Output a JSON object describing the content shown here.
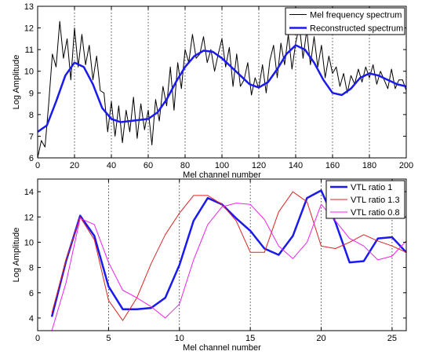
{
  "chart_data": [
    {
      "type": "line",
      "xlabel": "Mel channel number",
      "ylabel": "Log Amplitude",
      "xlim": [
        0,
        200
      ],
      "ylim": [
        6,
        13
      ],
      "xticks": [
        0,
        20,
        40,
        60,
        80,
        100,
        120,
        140,
        160,
        180,
        200
      ],
      "yticks": [
        6,
        7,
        8,
        9,
        10,
        11,
        12,
        13
      ],
      "vlines": [
        20,
        40,
        60,
        80,
        100,
        120,
        140,
        160,
        180,
        200
      ],
      "legend_position": "top-right",
      "grid": false,
      "series": [
        {
          "name": "Mel frequency spectrum",
          "color": "#000000",
          "width": 1,
          "x": [
            0,
            2,
            4,
            6,
            8,
            10,
            12,
            14,
            16,
            18,
            20,
            22,
            24,
            26,
            28,
            30,
            32,
            34,
            36,
            38,
            40,
            42,
            44,
            46,
            48,
            50,
            52,
            54,
            56,
            58,
            60,
            62,
            64,
            66,
            68,
            70,
            72,
            74,
            76,
            78,
            80,
            82,
            84,
            86,
            88,
            90,
            92,
            94,
            96,
            98,
            100,
            102,
            104,
            106,
            108,
            110,
            112,
            114,
            116,
            118,
            120,
            122,
            124,
            126,
            128,
            130,
            132,
            134,
            136,
            138,
            140,
            142,
            144,
            146,
            148,
            150,
            152,
            154,
            156,
            158,
            160,
            162,
            164,
            166,
            168,
            170,
            172,
            174,
            176,
            178,
            180,
            182,
            184,
            186,
            188,
            190,
            192,
            194,
            196,
            198,
            200
          ],
          "y": [
            6.0,
            6.8,
            6.5,
            8.5,
            10.8,
            10.2,
            12.3,
            10.6,
            11.5,
            9.6,
            12.0,
            10.2,
            11.7,
            10.3,
            11.2,
            9.6,
            10.7,
            9.1,
            9.0,
            7.2,
            8.6,
            7.0,
            8.4,
            6.7,
            8.2,
            7.2,
            8.8,
            6.9,
            8.5,
            7.3,
            8.2,
            6.6,
            8.7,
            7.7,
            9.3,
            8.4,
            10.2,
            8.2,
            10.4,
            9.2,
            11.0,
            10.4,
            11.7,
            10.6,
            10.8,
            11.6,
            10.4,
            11.0,
            10.0,
            10.8,
            11.5,
            10.2,
            11.1,
            9.3,
            10.8,
            9.3,
            9.6,
            10.4,
            8.9,
            9.7,
            9.2,
            10.3,
            9.0,
            10.5,
            11.2,
            9.7,
            11.3,
            10.3,
            11.7,
            10.1,
            11.3,
            12.1,
            10.6,
            11.9,
            10.3,
            11.6,
            10.2,
            11.2,
            9.7,
            10.7,
            9.9,
            10.2,
            9.3,
            9.9,
            9.0,
            9.8,
            9.4,
            10.1,
            9.5,
            10.2,
            9.7,
            10.3,
            9.4,
            10.0,
            9.6,
            9.2,
            10.1,
            9.2,
            9.6,
            9.6,
            9.1
          ]
        },
        {
          "name": "Reconstructed spectrum",
          "color": "#1a1aee",
          "width": 2.5,
          "x": [
            0,
            5,
            10,
            15,
            20,
            25,
            30,
            35,
            40,
            45,
            50,
            55,
            60,
            65,
            70,
            75,
            80,
            85,
            90,
            95,
            100,
            105,
            110,
            115,
            120,
            125,
            130,
            135,
            140,
            145,
            150,
            155,
            160,
            165,
            170,
            175,
            180,
            185,
            190,
            195,
            200
          ],
          "y": [
            7.2,
            7.5,
            8.6,
            9.8,
            10.4,
            10.2,
            9.4,
            8.3,
            7.8,
            7.65,
            7.7,
            7.75,
            7.8,
            8.1,
            8.7,
            9.5,
            10.2,
            10.7,
            10.95,
            10.9,
            10.6,
            10.2,
            9.8,
            9.4,
            9.25,
            9.5,
            10.1,
            10.8,
            11.2,
            11.0,
            10.4,
            9.6,
            9.0,
            8.9,
            9.2,
            9.7,
            9.9,
            9.8,
            9.6,
            9.4,
            9.3
          ]
        }
      ]
    },
    {
      "type": "line",
      "xlabel": "Mel channel number",
      "ylabel": "Log Amplitude",
      "xlim": [
        0,
        26
      ],
      "ylim": [
        3,
        15
      ],
      "xticks": [
        0,
        5,
        10,
        15,
        20,
        25
      ],
      "yticks": [
        4,
        6,
        8,
        10,
        12,
        14
      ],
      "vlines": [
        5,
        10,
        15,
        20,
        25
      ],
      "legend_position": "top-right",
      "grid": false,
      "series": [
        {
          "name": "VTL ratio 1",
          "color": "#1a1aee",
          "width": 2.5,
          "x": [
            1,
            2,
            3,
            4,
            5,
            6,
            7,
            8,
            9,
            10,
            11,
            12,
            13,
            14,
            15,
            16,
            17,
            18,
            19,
            20,
            21,
            22,
            23,
            24,
            25,
            26
          ],
          "y": [
            4.1,
            8.5,
            12.1,
            10.5,
            6.5,
            4.7,
            4.7,
            4.8,
            5.6,
            8.2,
            11.7,
            13.5,
            13.0,
            11.9,
            10.9,
            9.5,
            9.0,
            10.5,
            13.5,
            14.1,
            11.6,
            8.4,
            8.5,
            10.3,
            10.4,
            9.2
          ]
        },
        {
          "name": "VTL ratio 1.3",
          "color": "#dd2222",
          "width": 1,
          "x": [
            1,
            2,
            3,
            4,
            5,
            6,
            7,
            8,
            9,
            10,
            11,
            12,
            13,
            14,
            15,
            16,
            17,
            18,
            19,
            20,
            21,
            22,
            23,
            24,
            25,
            26
          ],
          "y": [
            4.4,
            8.6,
            12.0,
            10.2,
            5.4,
            3.8,
            5.6,
            8.3,
            10.6,
            12.3,
            13.7,
            13.7,
            13.0,
            11.7,
            9.2,
            9.2,
            12.4,
            14.0,
            13.2,
            9.7,
            9.5,
            10.0,
            10.6,
            10.1,
            9.7,
            9.2
          ]
        },
        {
          "name": "VTL ratio 0.8",
          "color": "#ee22ee",
          "width": 1,
          "x": [
            1,
            2,
            3,
            4,
            5,
            6,
            7,
            8,
            9,
            10,
            11,
            12,
            13,
            14,
            15,
            16,
            17,
            18,
            19,
            20,
            21,
            22,
            23,
            24,
            25,
            26
          ],
          "y": [
            3.0,
            6.8,
            11.9,
            11.4,
            8.4,
            6.2,
            5.6,
            4.9,
            4.0,
            5.1,
            8.6,
            11.4,
            12.8,
            13.1,
            13.0,
            11.8,
            9.7,
            8.7,
            10.0,
            13.0,
            11.7,
            10.3,
            9.7,
            8.6,
            8.9,
            10.1
          ]
        }
      ]
    }
  ]
}
